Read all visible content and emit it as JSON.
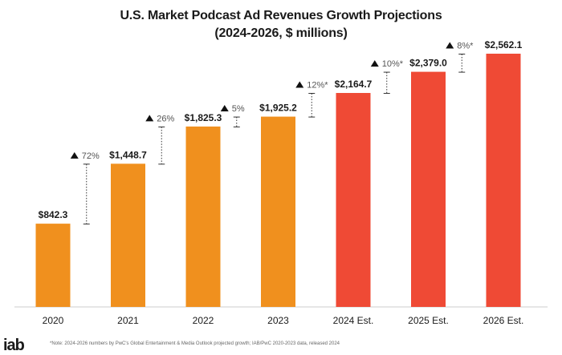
{
  "chart_data": {
    "type": "bar",
    "title": "U.S. Market Podcast Ad Revenues Growth Projections",
    "subtitle": "(2024-2026, $ millions)",
    "categories": [
      "2020",
      "2021",
      "2022",
      "2023",
      "2024 Est.",
      "2025 Est.",
      "2026 Est."
    ],
    "values": [
      842.3,
      1448.7,
      1825.3,
      1925.2,
      2164.7,
      2379.0,
      2562.1
    ],
    "value_labels": [
      "$842.3",
      "$1,448.7",
      "$1,825.3",
      "$1,925.2",
      "$2,164.7",
      "$2,379.0",
      "$2,562.1"
    ],
    "estimated": [
      false,
      false,
      false,
      false,
      true,
      true,
      true
    ],
    "growth_labels": [
      "72%",
      "26%",
      "5%",
      "12%*",
      "10%*",
      "8%*"
    ],
    "ylim": [
      0,
      2600
    ],
    "grid": false,
    "colors": {
      "actual": "#F0901E",
      "estimate": "#EF4A35",
      "text": "#1a1a1a",
      "growth": "#555555"
    }
  },
  "footer": {
    "logo": "iab",
    "note": "*Note: 2024-2026 numbers by PwC's Global Entertainment & Media Outlook projected growth; IAB/PwC 2020-2023 data, released 2024"
  }
}
